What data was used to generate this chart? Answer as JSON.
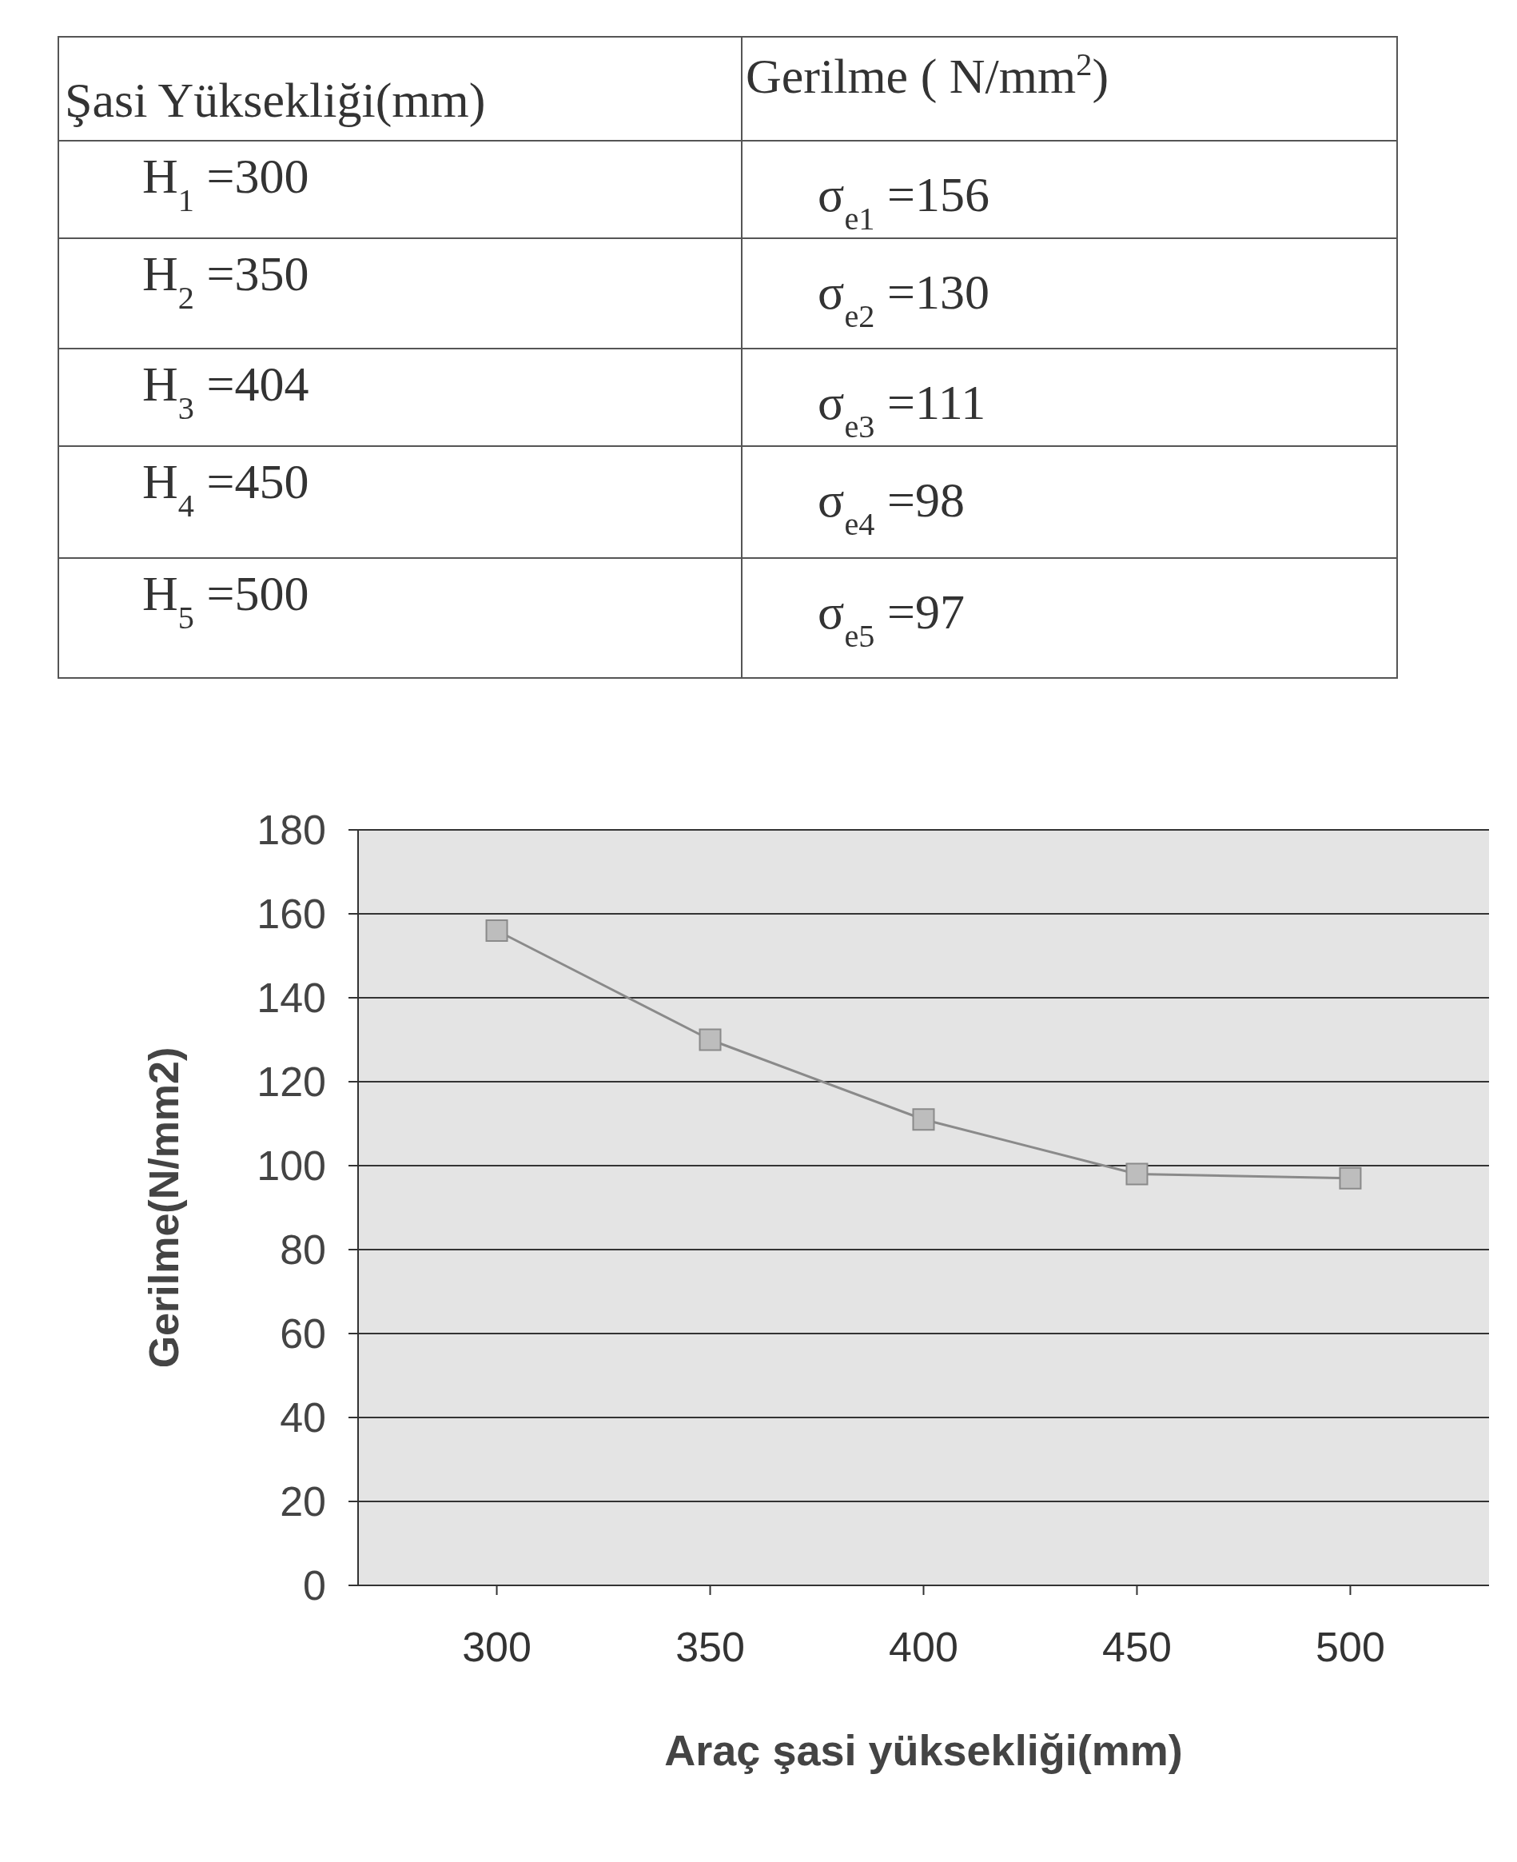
{
  "chart_data": {
    "type": "line",
    "xlabel": "Araç şasi yüksekliği(mm)",
    "ylabel": "Gerilme(N/mm2)",
    "categories": [
      "300",
      "350",
      "400",
      "450",
      "500"
    ],
    "series": [
      {
        "color": "#8a8a8a",
        "values": [
          156,
          130,
          111,
          98,
          97
        ]
      }
    ],
    "value_labels": [
      "σ$_{e1}$ =156",
      "σ$_{e2}$ =130",
      "σ$_{e3}$ =111",
      "σ$_{e4}$ =98",
      "σ$_{e5}$ =97"
    ],
    "annotations": [
      "Şasi Yüksekliği(mm)",
      "Gerilme  ( N/mm$^{2}$)",
      "H$_{1}$  =300",
      "H$_{2}$  =350",
      "H$_{3}$  =404",
      "H$_{4}$  =450",
      "H$_{5}$  =500"
    ],
    "ylim": [
      0,
      180
    ],
    "yticks": [
      0,
      20,
      40,
      60,
      80,
      100,
      120,
      140,
      160,
      180
    ],
    "grid": "y",
    "marker": "square",
    "line_style": "solid"
  }
}
